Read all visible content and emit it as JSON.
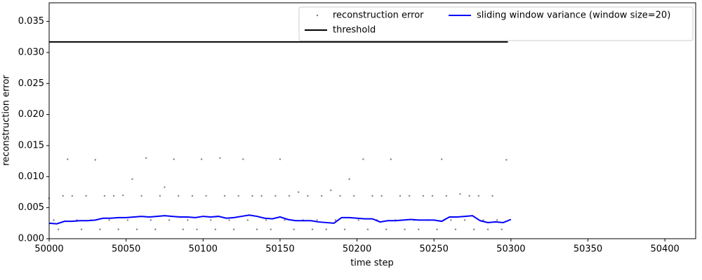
{
  "chart_data": {
    "type": "line",
    "xlabel": "time step",
    "ylabel": "reconstruction error",
    "xlim": [
      50000,
      50420
    ],
    "ylim": [
      0,
      0.038
    ],
    "xticks": [
      50000,
      50050,
      50100,
      50150,
      50200,
      50250,
      50300,
      50350,
      50400
    ],
    "yticks": [
      {
        "value": 0,
        "label": "0.000"
      },
      0.005,
      {
        "value": 0.01,
        "label": "0.010"
      },
      0.015,
      {
        "value": 0.02,
        "label": "0.020"
      },
      0.025,
      {
        "value": 0.03,
        "label": "0.030"
      },
      0.035
    ],
    "legend": "upper right",
    "legend_columns": 2,
    "series": [
      {
        "name": "reconstruction error",
        "color": "#808080",
        "style": "points",
        "x": [
          50000,
          50003,
          50006,
          50009,
          50012,
          50015,
          50018,
          50021,
          50024,
          50027,
          50030,
          50033,
          50036,
          50039,
          50042,
          50045,
          50048,
          50051,
          50054,
          50057,
          50060,
          50063,
          50066,
          50069,
          50072,
          50075,
          50078,
          50081,
          50084,
          50087,
          50090,
          50093,
          50096,
          50099,
          50102,
          50105,
          50108,
          50111,
          50114,
          50117,
          50120,
          50123,
          50126,
          50129,
          50132,
          50135,
          50138,
          50141,
          50144,
          50147,
          50150,
          50153,
          50156,
          50159,
          50162,
          50165,
          50168,
          50171,
          50174,
          50177,
          50180,
          50183,
          50186,
          50189,
          50192,
          50195,
          50198,
          50201,
          50204,
          50207,
          50210,
          50213,
          50216,
          50219,
          50222,
          50225,
          50228,
          50231,
          50234,
          50237,
          50240,
          50243,
          50246,
          50249,
          50252,
          50255,
          50258,
          50261,
          50264,
          50267,
          50270,
          50273,
          50276,
          50279,
          50282,
          50285,
          50288,
          50291,
          50294,
          50297
        ],
        "values": [
          0.0065,
          0.003,
          0.0015,
          0.0069,
          0.0128,
          0.0069,
          0.003,
          0.0015,
          0.0069,
          0.003,
          0.0127,
          0.0015,
          0.0069,
          0.003,
          0.0069,
          0.0015,
          0.007,
          0.003,
          0.0096,
          0.0015,
          0.0069,
          0.013,
          0.003,
          0.0015,
          0.0069,
          0.0083,
          0.003,
          0.0128,
          0.0069,
          0.0015,
          0.003,
          0.0069,
          0.0015,
          0.0128,
          0.0069,
          0.003,
          0.0015,
          0.013,
          0.0069,
          0.003,
          0.0015,
          0.0069,
          0.0128,
          0.003,
          0.0069,
          0.0015,
          0.0069,
          0.003,
          0.0015,
          0.0069,
          0.0128,
          0.003,
          0.0069,
          0.0015,
          0.0075,
          0.003,
          0.0069,
          0.0015,
          0.003,
          0.0069,
          0.0015,
          0.0078,
          0.003,
          0.0069,
          0.0015,
          0.0096,
          0.0069,
          0.003,
          0.0128,
          0.0015,
          0.0069,
          0.003,
          0.0069,
          0.0015,
          0.0128,
          0.003,
          0.0069,
          0.0015,
          0.0069,
          0.003,
          0.0015,
          0.0069,
          0.003,
          0.0069,
          0.0015,
          0.0128,
          0.0069,
          0.003,
          0.0015,
          0.0072,
          0.003,
          0.0069,
          0.0015,
          0.0069,
          0.003,
          0.0015,
          0.0069,
          0.003,
          0.0015,
          0.0127
        ]
      },
      {
        "name": "threshold",
        "color": "#000000",
        "style": "line",
        "x": [
          50000,
          50298
        ],
        "values": [
          0.0317,
          0.0317
        ]
      },
      {
        "name": "sliding window variance (window size=20)",
        "color": "#0000ff",
        "style": "line",
        "x": [
          50000,
          50005,
          50010,
          50015,
          50020,
          50025,
          50030,
          50035,
          50040,
          50045,
          50050,
          50055,
          50060,
          50065,
          50070,
          50075,
          50080,
          50085,
          50090,
          50095,
          50100,
          50105,
          50110,
          50115,
          50120,
          50125,
          50130,
          50135,
          50140,
          50145,
          50150,
          50155,
          50160,
          50165,
          50170,
          50175,
          50180,
          50185,
          50190,
          50195,
          50200,
          50205,
          50210,
          50215,
          50220,
          50225,
          50230,
          50235,
          50240,
          50245,
          50250,
          50255,
          50260,
          50265,
          50270,
          50275,
          50280,
          50285,
          50290,
          50295,
          50300
        ],
        "values": [
          0.0025,
          0.0024,
          0.0028,
          0.0028,
          0.0029,
          0.0029,
          0.003,
          0.0033,
          0.0033,
          0.0034,
          0.0034,
          0.0035,
          0.0036,
          0.0035,
          0.0036,
          0.0037,
          0.0036,
          0.0035,
          0.0035,
          0.0034,
          0.0036,
          0.0035,
          0.0036,
          0.0033,
          0.0034,
          0.0036,
          0.0038,
          0.0036,
          0.0033,
          0.0032,
          0.0035,
          0.0031,
          0.0029,
          0.0029,
          0.0029,
          0.0027,
          0.0026,
          0.0025,
          0.0034,
          0.0034,
          0.0033,
          0.0032,
          0.0032,
          0.0027,
          0.0029,
          0.0029,
          0.003,
          0.0031,
          0.003,
          0.003,
          0.003,
          0.0028,
          0.0035,
          0.0035,
          0.0036,
          0.0037,
          0.0029,
          0.0026,
          0.0027,
          0.0026,
          0.0031
        ]
      }
    ]
  }
}
